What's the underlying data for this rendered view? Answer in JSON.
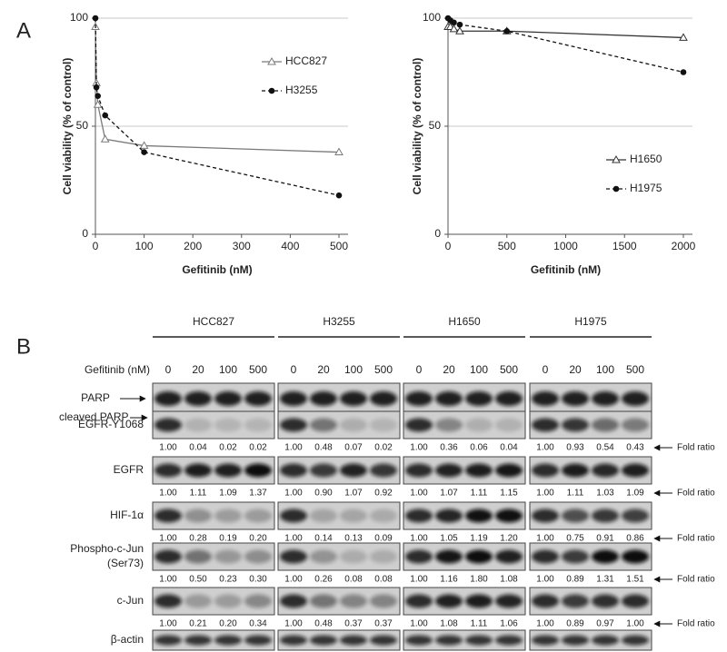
{
  "panel_labels": [
    "A",
    "B"
  ],
  "chart_data": [
    {
      "type": "line",
      "x_label": "Gefitinib (nM)",
      "y_label": "Cell viability (% of control)",
      "x": [
        0,
        2,
        5,
        20,
        100,
        500
      ],
      "series": [
        {
          "name": "HCC827",
          "color": "#7a7a7a",
          "marker": "triangle-open",
          "dashed": false,
          "values": [
            96,
            70,
            60,
            44,
            41,
            38
          ]
        },
        {
          "name": "H3255",
          "color": "#111111",
          "marker": "circle",
          "dashed": true,
          "values": [
            100,
            68,
            64,
            55,
            38,
            18
          ]
        }
      ],
      "xlim": [
        0,
        500
      ],
      "xticks": [
        0,
        100,
        200,
        300,
        400,
        500
      ],
      "ylim": [
        0,
        100
      ],
      "yticks": [
        0,
        50,
        100
      ],
      "grid": true,
      "legend": "upper right"
    },
    {
      "type": "line",
      "x_label": "Gefitinib (nM)",
      "y_label": "Cell viability (% of control)",
      "x": [
        0,
        20,
        50,
        100,
        500,
        2000
      ],
      "series": [
        {
          "name": "H1650",
          "color": "#333333",
          "marker": "triangle-open",
          "dashed": false,
          "values": [
            96,
            96,
            95,
            94,
            94,
            91
          ]
        },
        {
          "name": "H1975",
          "color": "#111111",
          "marker": "circle",
          "dashed": true,
          "values": [
            100,
            99,
            98,
            97,
            94,
            75
          ]
        }
      ],
      "xlim": [
        0,
        2000
      ],
      "xticks": [
        0,
        500,
        1000,
        1500,
        2000
      ],
      "ylim": [
        0,
        100
      ],
      "yticks": [
        0,
        50,
        100
      ],
      "grid": true,
      "legend": "lower right"
    }
  ],
  "blot": {
    "dose_label": "Gefitinib (nM)",
    "fold_ratio_label": "Fold ratio",
    "groups": [
      {
        "name": "HCC827",
        "doses": [
          "0",
          "20",
          "100",
          "500"
        ]
      },
      {
        "name": "H3255",
        "doses": [
          "0",
          "20",
          "100",
          "500"
        ]
      },
      {
        "name": "H1650",
        "doses": [
          "0",
          "20",
          "100",
          "500"
        ]
      },
      {
        "name": "H1975",
        "doses": [
          "0",
          "20",
          "100",
          "500"
        ]
      }
    ],
    "rows": [
      {
        "labels": [
          "PARP",
          "cleaved PARP"
        ]
      },
      {
        "labels": [
          "EGFR-Y1068"
        ],
        "ratios": [
          [
            "1.00",
            "0.04",
            "0.02",
            "0.02"
          ],
          [
            "1.00",
            "0.48",
            "0.07",
            "0.02"
          ],
          [
            "1.00",
            "0.36",
            "0.06",
            "0.04"
          ],
          [
            "1.00",
            "0.93",
            "0.54",
            "0.43"
          ]
        ]
      },
      {
        "labels": [
          "EGFR"
        ],
        "ratios": [
          [
            "1.00",
            "1.11",
            "1.09",
            "1.37"
          ],
          [
            "1.00",
            "0.90",
            "1.07",
            "0.92"
          ],
          [
            "1.00",
            "1.07",
            "1.11",
            "1.15"
          ],
          [
            "1.00",
            "1.11",
            "1.03",
            "1.09"
          ]
        ]
      },
      {
        "labels": [
          "HIF-1α"
        ],
        "ratios": [
          [
            "1.00",
            "0.28",
            "0.19",
            "0.20"
          ],
          [
            "1.00",
            "0.14",
            "0.13",
            "0.09"
          ],
          [
            "1.00",
            "1.05",
            "1.19",
            "1.20"
          ],
          [
            "1.00",
            "0.75",
            "0.91",
            "0.86"
          ]
        ]
      },
      {
        "labels": [
          "Phospho-c-Jun",
          "(Ser73)"
        ],
        "ratios": [
          [
            "1.00",
            "0.50",
            "0.23",
            "0.30"
          ],
          [
            "1.00",
            "0.26",
            "0.08",
            "0.08"
          ],
          [
            "1.00",
            "1.16",
            "1.80",
            "1.08"
          ],
          [
            "1.00",
            "0.89",
            "1.31",
            "1.51"
          ]
        ]
      },
      {
        "labels": [
          "c-Jun"
        ],
        "ratios": [
          [
            "1.00",
            "0.21",
            "0.20",
            "0.34"
          ],
          [
            "1.00",
            "0.48",
            "0.37",
            "0.37"
          ],
          [
            "1.00",
            "1.08",
            "1.11",
            "1.06"
          ],
          [
            "1.00",
            "0.89",
            "0.97",
            "1.00"
          ]
        ]
      },
      {
        "labels": [
          "β-actin"
        ]
      }
    ]
  }
}
